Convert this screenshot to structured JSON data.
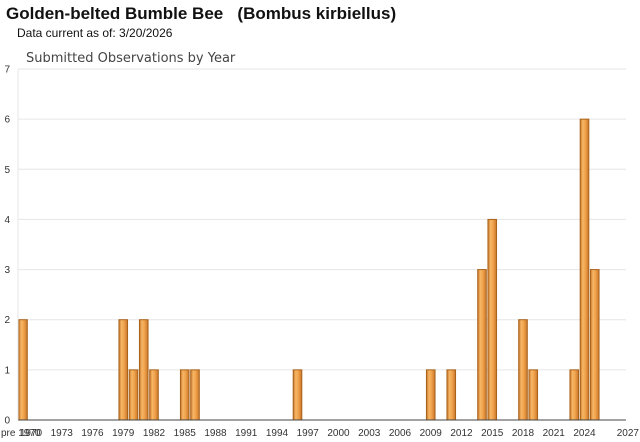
{
  "header": {
    "title": "Golden-belted Bumble Bee   (Bombus kirbiellus)",
    "data_current": "Data current as of: 3/20/2026"
  },
  "colors": {
    "bar_fill": "#F0A24B",
    "bar_stroke": "#A8621A",
    "grid": "#E6E6E6",
    "axis": "#444444"
  },
  "chart_data": {
    "type": "bar",
    "title": "Submitted Observations by Year",
    "xlabel": "",
    "ylabel": "",
    "ylim": [
      0,
      7
    ],
    "yticks": [
      0,
      1,
      2,
      3,
      4,
      5,
      6,
      7
    ],
    "grid": true,
    "legend": "none",
    "x_tick_labels": [
      "pre 1970",
      "1970",
      "1973",
      "1976",
      "1979",
      "1982",
      "1985",
      "1988",
      "1991",
      "1994",
      "1997",
      "2000",
      "2003",
      "2006",
      "2009",
      "2012",
      "2015",
      "2018",
      "2021",
      "2024",
      "2027"
    ],
    "categories": [
      "pre 1970",
      "1979",
      "1980",
      "1981",
      "1982",
      "1985",
      "1986",
      "1996",
      "2009",
      "2011",
      "2014",
      "2015",
      "2018",
      "2019",
      "2023",
      "2024",
      "2025"
    ],
    "values": [
      2,
      2,
      1,
      2,
      1,
      1,
      1,
      1,
      1,
      1,
      3,
      4,
      2,
      1,
      1,
      6,
      3
    ]
  }
}
